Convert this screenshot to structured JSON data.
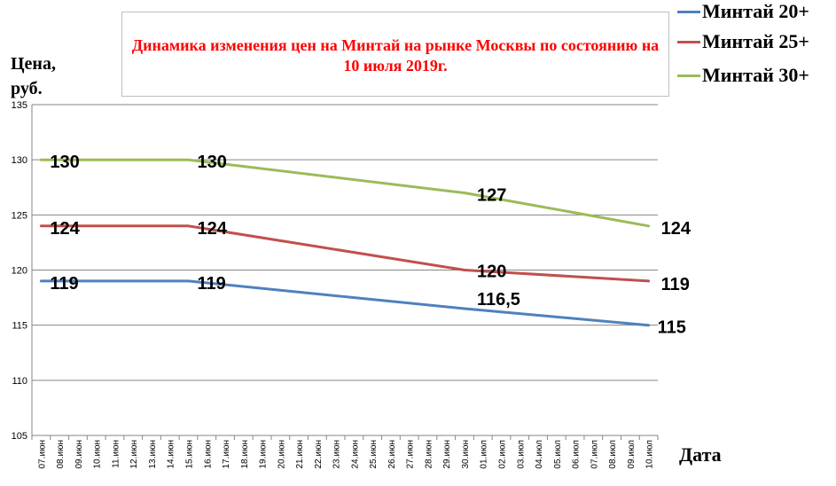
{
  "chart_data": {
    "type": "line",
    "title": "Динамика изменения цен на Минтай на рынке Москвы по состоянию на 10 июля 2019г.",
    "ylabel": "Цена, руб.",
    "xlabel": "Дата",
    "ylim": [
      105,
      135
    ],
    "yticks": [
      105,
      110,
      115,
      120,
      125,
      130,
      135
    ],
    "grid": true,
    "legend_position": "top-right",
    "categories": [
      "07.июн",
      "08.июн",
      "09.июн",
      "10.июн",
      "11.июн",
      "12.июн",
      "13.июн",
      "14.июн",
      "15.июн",
      "16.июн",
      "17.июн",
      "18.июн",
      "19.июн",
      "20.июн",
      "21.июн",
      "22.июн",
      "23.июн",
      "24.июн",
      "25.июн",
      "26.июн",
      "27.июн",
      "28.июн",
      "29.июн",
      "30.июн",
      "01.июл",
      "02.июл",
      "03.июл",
      "04.июл",
      "05.июл",
      "06.июл",
      "07.июл",
      "08.июл",
      "09.июл",
      "10.июл"
    ],
    "series": [
      {
        "name": "Минтай 20+",
        "color": "#4f81bd",
        "points": [
          {
            "x": "07.июн",
            "y": 119
          },
          {
            "x": "15.июн",
            "y": 119
          },
          {
            "x": "30.июн",
            "y": 116.5
          },
          {
            "x": "10.июл",
            "y": 115
          }
        ],
        "labels": [
          "119",
          "119",
          "116,5",
          "115"
        ]
      },
      {
        "name": "Минтай 25+",
        "color": "#c0504d",
        "points": [
          {
            "x": "07.июн",
            "y": 124
          },
          {
            "x": "15.июн",
            "y": 124
          },
          {
            "x": "30.июн",
            "y": 120
          },
          {
            "x": "10.июл",
            "y": 119
          }
        ],
        "labels": [
          "124",
          "124",
          "120",
          "119"
        ]
      },
      {
        "name": "Минтай 30+",
        "color": "#9bbb59",
        "points": [
          {
            "x": "07.июн",
            "y": 130
          },
          {
            "x": "15.июн",
            "y": 130
          },
          {
            "x": "30.июн",
            "y": 127
          },
          {
            "x": "10.июл",
            "y": 124
          }
        ],
        "labels": [
          "130",
          "130",
          "127",
          "124"
        ]
      }
    ]
  }
}
